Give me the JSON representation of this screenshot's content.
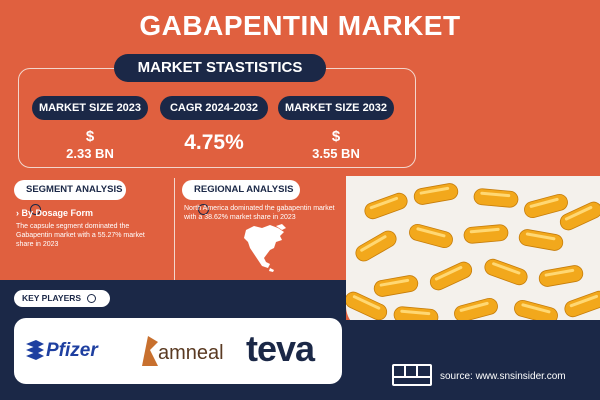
{
  "title": "GABAPENTIN MARKET",
  "stats": {
    "heading": "MARKET STASTISTICS",
    "size_2023": {
      "label": "MARKET SIZE 2023",
      "currency": "$",
      "value": "2.33 BN"
    },
    "cagr": {
      "label": "CAGR 2024-2032",
      "value": "4.75%"
    },
    "size_2032": {
      "label": "MARKET SIZE 2032",
      "currency": "$",
      "value": "3.55 BN"
    }
  },
  "segment": {
    "label": "SEGMENT ANALYSIS",
    "subhead": "› By Dosage Form",
    "text": "The capsule segment dominated the Gabapentin market with a 55.27% market share in 2023"
  },
  "regional": {
    "label": "REGIONAL ANALYSIS",
    "text": "North America dominated the gabapentin market with a 38.62% market share in 2023"
  },
  "key_players": {
    "label": "KEY PLAYERS",
    "logos": [
      "Pfizer",
      "amneal",
      "teva"
    ]
  },
  "source": "source: www.snsinsider.com",
  "colors": {
    "background": "#E0603F",
    "navy": "#1B2847",
    "capsule": "#F2A81C"
  }
}
